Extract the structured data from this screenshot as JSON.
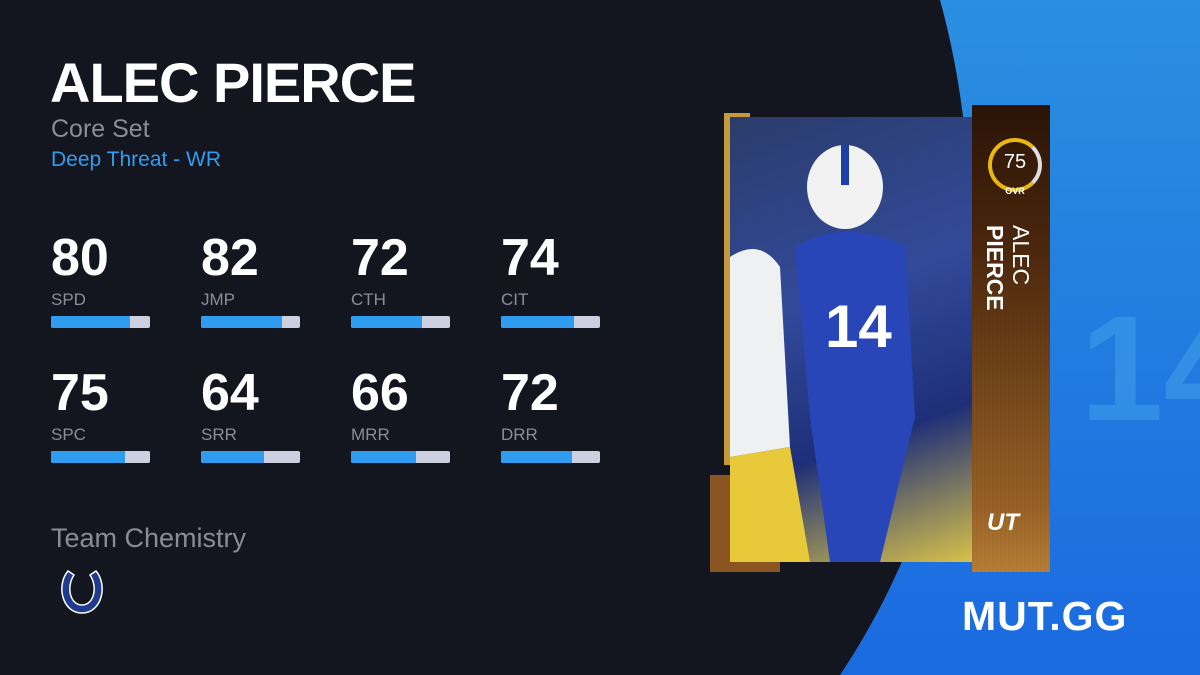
{
  "player": {
    "name": "ALEC PIERCE",
    "first_name": "ALEC",
    "last_name": "PIERCE",
    "set": "Core Set",
    "archetype": "Deep Threat - WR",
    "ovr": "75",
    "ovr_label": "OVR",
    "program_badge": "UT"
  },
  "stats": [
    {
      "value": "80",
      "label": "SPD",
      "fill": 0.8
    },
    {
      "value": "82",
      "label": "JMP",
      "fill": 0.82
    },
    {
      "value": "72",
      "label": "CTH",
      "fill": 0.72
    },
    {
      "value": "74",
      "label": "CIT",
      "fill": 0.74
    },
    {
      "value": "75",
      "label": "SPC",
      "fill": 0.75
    },
    {
      "value": "64",
      "label": "SRR",
      "fill": 0.64
    },
    {
      "value": "66",
      "label": "MRR",
      "fill": 0.66
    },
    {
      "value": "72",
      "label": "DRR",
      "fill": 0.72
    }
  ],
  "team_chemistry": {
    "label": "Team Chemistry",
    "team_icon": "colts-horseshoe-icon"
  },
  "brand": {
    "logo": "MUT.GG",
    "accent": "#2f9cf0",
    "background": "#14161f"
  }
}
